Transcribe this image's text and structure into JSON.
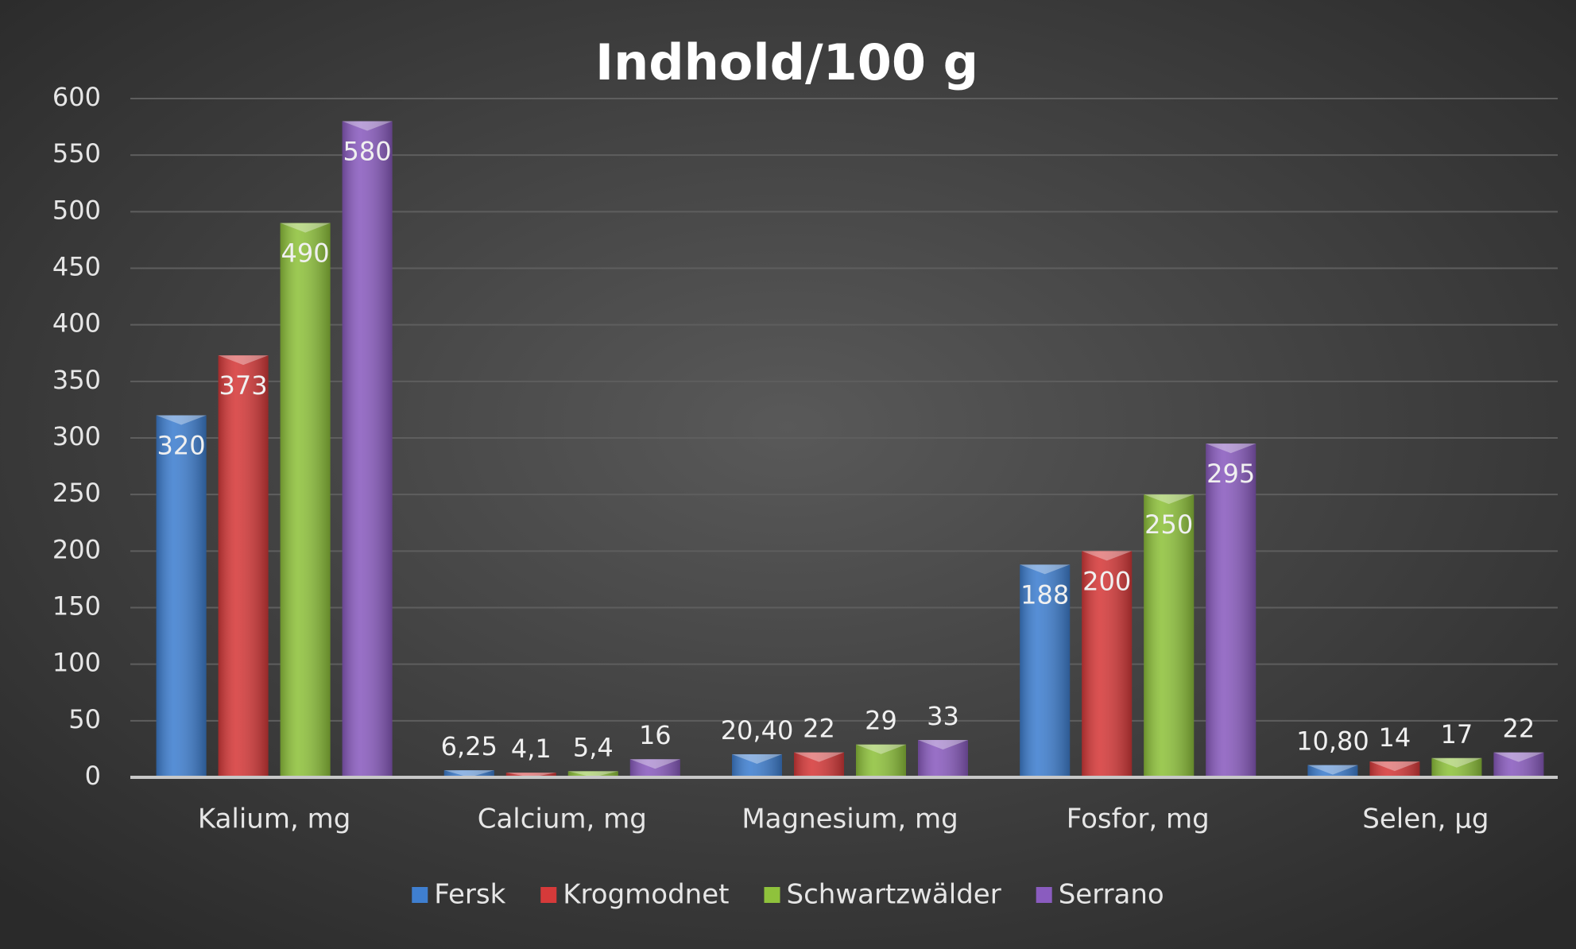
{
  "chart_data": {
    "type": "bar",
    "title": "Indhold/100 g",
    "categories": [
      "Kalium, mg",
      "Calcium, mg",
      "Magnesium, mg",
      "Fosfor, mg",
      "Selen, µg"
    ],
    "series": [
      {
        "name": "Fersk",
        "color": "#3f7fd0",
        "values": [
          320,
          6.25,
          20.4,
          188,
          10.8
        ],
        "value_labels": [
          "320",
          "6,25",
          "20,40",
          "188",
          "10,80"
        ]
      },
      {
        "name": "Krogmodnet",
        "color": "#d63a3a",
        "values": [
          373,
          4.1,
          22,
          200,
          14
        ],
        "value_labels": [
          "373",
          "4,1",
          "22",
          "200",
          "14"
        ]
      },
      {
        "name": "Schwartzwälder",
        "color": "#8fc23c",
        "values": [
          490,
          5.4,
          29,
          250,
          17
        ],
        "value_labels": [
          "490",
          "5,4",
          "29",
          "250",
          "17"
        ]
      },
      {
        "name": "Serrano",
        "color": "#8a5cbf",
        "values": [
          580,
          16,
          33,
          295,
          22
        ],
        "value_labels": [
          "580",
          "16",
          "33",
          "295",
          "22"
        ]
      }
    ],
    "ylim": [
      0,
      600
    ],
    "yticks": [
      0,
      50,
      100,
      150,
      200,
      250,
      300,
      350,
      400,
      450,
      500,
      550,
      600
    ],
    "grid": true,
    "legend": "bottom"
  }
}
